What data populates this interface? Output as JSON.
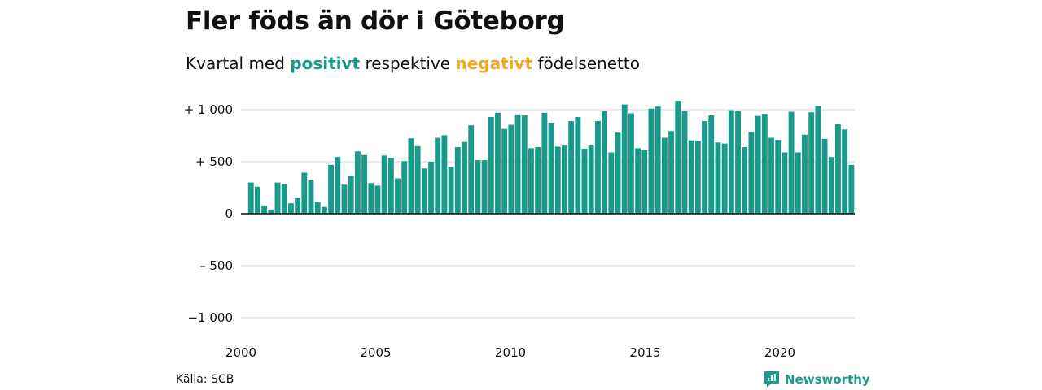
{
  "title": "Fler föds än dör i Göteborg",
  "subtitle": {
    "prefix": "Kvartal med ",
    "positive_word": "positivt",
    "middle": " respektive ",
    "negative_word": "negativt",
    "suffix": " födelsenetto"
  },
  "colors": {
    "positive": "#1a9a8a",
    "negative": "#f5a623",
    "grid": "#dddddd",
    "axis": "#111111"
  },
  "source": "Källa: SCB",
  "brand": {
    "name": "Newsworthy",
    "icon": "newsworthy-logo-icon"
  },
  "chart_data": {
    "type": "bar",
    "x_start": 2000,
    "x_period": "quarter",
    "ylim": [
      -1000,
      1000
    ],
    "y_ticks": [
      1000,
      500,
      0,
      -500,
      -1000
    ],
    "y_tick_labels": [
      "+ 1 000",
      "+   500",
      "0",
      "– 500",
      "−1 000"
    ],
    "x_ticks": [
      2000,
      2005,
      2010,
      2015,
      2020
    ],
    "x_tick_labels": [
      "2000",
      "2005",
      "2010",
      "2015",
      "2020"
    ],
    "grid": true,
    "values": [
      5,
      300,
      260,
      80,
      40,
      300,
      285,
      100,
      150,
      395,
      320,
      110,
      65,
      470,
      545,
      280,
      365,
      600,
      565,
      295,
      270,
      560,
      535,
      340,
      505,
      725,
      650,
      435,
      500,
      730,
      755,
      450,
      640,
      690,
      850,
      515,
      515,
      930,
      970,
      815,
      855,
      955,
      945,
      630,
      640,
      970,
      875,
      645,
      655,
      890,
      930,
      625,
      655,
      890,
      985,
      590,
      780,
      1050,
      965,
      630,
      610,
      1010,
      1030,
      730,
      795,
      1085,
      985,
      705,
      700,
      890,
      945,
      685,
      675,
      995,
      985,
      640,
      785,
      940,
      960,
      730,
      710,
      590,
      980,
      590,
      760,
      975,
      1035,
      720,
      545,
      860,
      810,
      470
    ]
  }
}
